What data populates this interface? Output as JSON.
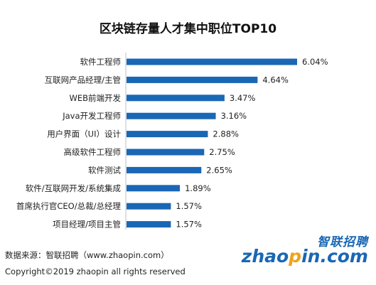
{
  "chart_data": {
    "type": "bar",
    "orientation": "horizontal",
    "title": "区块链存量人才集中职位TOP10",
    "categories": [
      "软件工程师",
      "互联网产品经理/主管",
      "WEB前端开发",
      "Java开发工程师",
      "用户界面（UI）设计",
      "高级软件工程师",
      "软件测试",
      "软件/互联网开发/系统集成",
      "首席执行官CEO/总裁/总经理",
      "项目经理/项目主管"
    ],
    "values": [
      6.04,
      4.64,
      3.47,
      3.16,
      2.88,
      2.75,
      2.65,
      1.89,
      1.57,
      1.57
    ],
    "value_labels": [
      "6.04%",
      "4.64%",
      "3.47%",
      "3.16%",
      "2.88%",
      "2.75%",
      "2.65%",
      "1.89%",
      "1.57%",
      "1.57%"
    ],
    "xlim": [
      0,
      6.04
    ],
    "bar_color": "#1a67b5",
    "grid": false,
    "legend": "none"
  },
  "footer": {
    "source": "数据来源：智联招聘（www.zhaopin.com）",
    "copyright": "Copyright©2019 zhaopin all rights reserved"
  },
  "logo": {
    "cn": "智联招聘",
    "en_prefix": "zhao",
    "en_dot": "p",
    "en_suffix": "in.com",
    "color": "#1a67b5",
    "accent": "#f0a21b"
  }
}
